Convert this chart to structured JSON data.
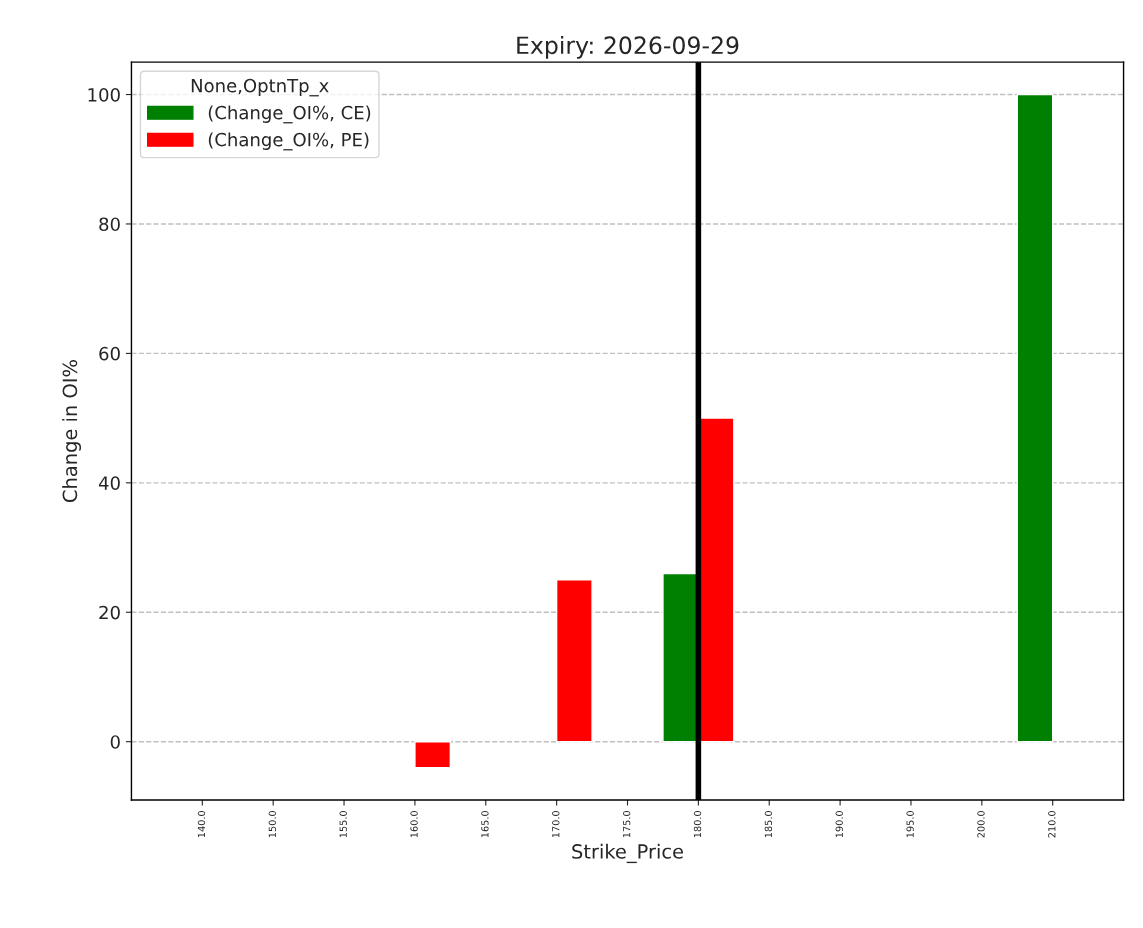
{
  "chart_data": {
    "type": "bar",
    "title": "Expiry: 2026-09-29",
    "xlabel": "Strike_Price",
    "ylabel": "Change in OI%",
    "legend_title": "None,OptnTp_x",
    "categories": [
      "140.0",
      "150.0",
      "155.0",
      "160.0",
      "165.0",
      "170.0",
      "175.0",
      "180.0",
      "185.0",
      "190.0",
      "195.0",
      "200.0",
      "210.0"
    ],
    "series": [
      {
        "name": "(Change_OI%, CE)",
        "color": "#008000",
        "values": [
          null,
          null,
          null,
          null,
          null,
          null,
          null,
          26,
          null,
          null,
          null,
          null,
          100
        ]
      },
      {
        "name": "(Change_OI%, PE)",
        "color": "#ff0000",
        "values": [
          null,
          null,
          null,
          -4,
          null,
          25,
          null,
          50,
          null,
          null,
          null,
          null,
          null
        ]
      }
    ],
    "ylim": [
      -9,
      105
    ],
    "yticks": [
      0,
      20,
      40,
      60,
      80,
      100
    ],
    "grid": "y",
    "legend": "top left",
    "ref_lines": [
      {
        "axis": "x",
        "value": "180.0",
        "color": "#000000"
      }
    ]
  }
}
